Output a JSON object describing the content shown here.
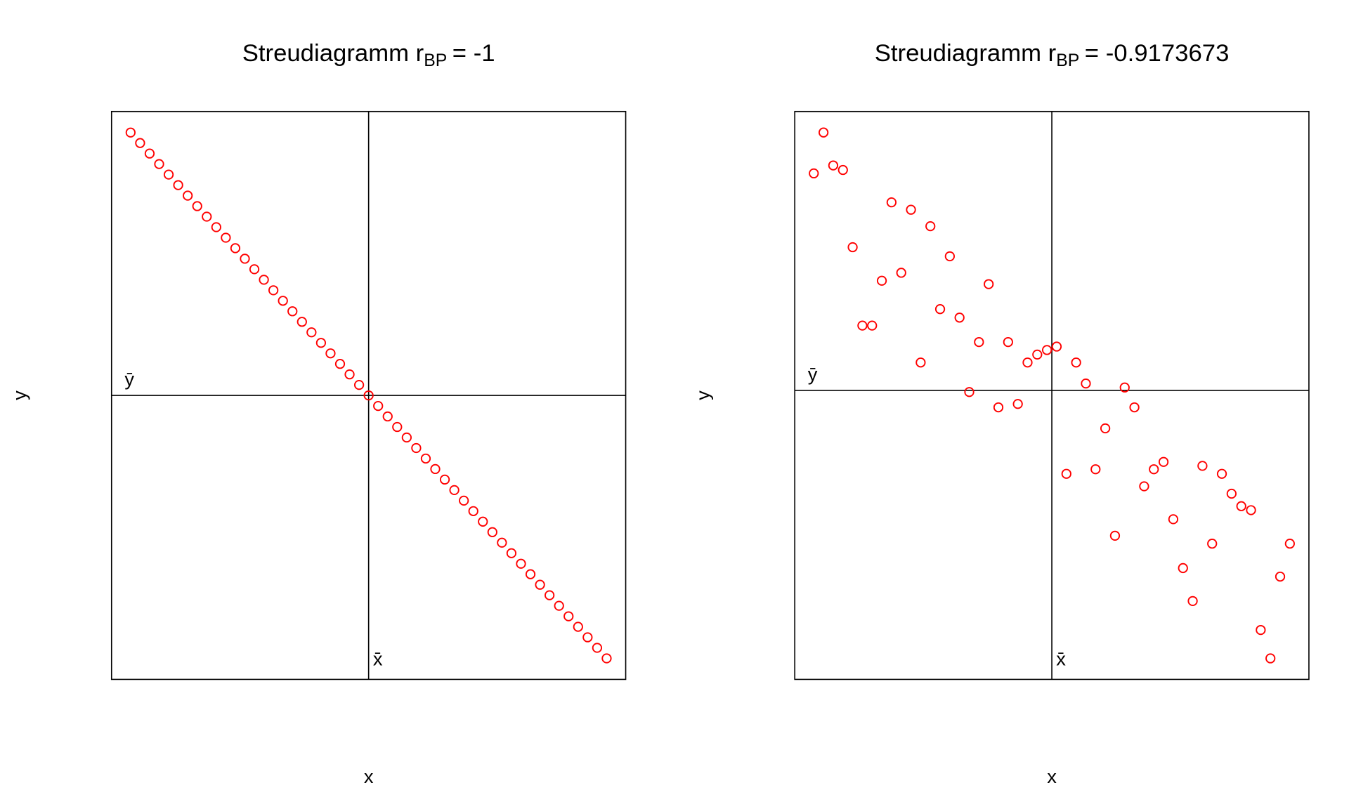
{
  "chart_data": [
    {
      "type": "scatter",
      "title": "Streudiagramm r",
      "title_subscript": "BP",
      "title_suffix": "= -1",
      "x_label": "x",
      "y_label": "y",
      "xbar_label": "x̄",
      "ybar_label": "ȳ",
      "xbar": 26,
      "ybar": 26,
      "color": "#ff0000",
      "xlim": [
        -1,
        53
      ],
      "ylim": [
        -1,
        53
      ],
      "x": [
        1,
        2,
        3,
        4,
        5,
        6,
        7,
        8,
        9,
        10,
        11,
        12,
        13,
        14,
        15,
        16,
        17,
        18,
        19,
        20,
        21,
        22,
        23,
        24,
        25,
        26,
        27,
        28,
        29,
        30,
        31,
        32,
        33,
        34,
        35,
        36,
        37,
        38,
        39,
        40,
        41,
        42,
        43,
        44,
        45,
        46,
        47,
        48,
        49,
        50,
        51
      ],
      "values": [
        51,
        50,
        49,
        48,
        47,
        46,
        45,
        44,
        43,
        42,
        41,
        40,
        39,
        38,
        37,
        36,
        35,
        34,
        33,
        32,
        31,
        30,
        29,
        28,
        27,
        26,
        25,
        24,
        23,
        22,
        21,
        20,
        19,
        18,
        17,
        16,
        15,
        14,
        13,
        12,
        11,
        10,
        9,
        8,
        7,
        6,
        5,
        4,
        3,
        2,
        1
      ]
    },
    {
      "type": "scatter",
      "title": "Streudiagramm r",
      "title_subscript": "BP",
      "title_suffix": "= -0.9173673",
      "x_label": "x",
      "y_label": "y",
      "xbar_label": "x̄",
      "ybar_label": "ȳ",
      "xbar": 25.5,
      "ybar": 50.9,
      "color": "#ff0000",
      "xlim": [
        -0.96,
        51.96
      ],
      "ylim": [
        0,
        100
      ],
      "x": [
        1,
        2,
        3,
        4,
        5,
        6,
        7,
        8,
        9,
        10,
        11,
        12,
        13,
        14,
        15,
        16,
        17,
        18,
        19,
        20,
        21,
        22,
        23,
        24,
        25,
        26,
        27,
        28,
        29,
        30,
        31,
        32,
        33,
        34,
        35,
        36,
        37,
        38,
        39,
        40,
        41,
        42,
        43,
        44,
        45,
        46,
        47,
        48,
        49,
        50
      ],
      "values": [
        89.1,
        96.3,
        90.5,
        89.7,
        76.1,
        62.3,
        62.3,
        70.2,
        84.0,
        71.6,
        82.7,
        55.8,
        79.8,
        65.2,
        74.5,
        63.7,
        50.6,
        59.4,
        69.6,
        47.9,
        59.4,
        48.5,
        55.8,
        57.2,
        58.0,
        58.6,
        36.2,
        55.8,
        52.1,
        37.0,
        44.2,
        25.3,
        51.4,
        47.9,
        34.0,
        37.0,
        38.3,
        28.2,
        19.6,
        13.8,
        37.6,
        23.9,
        36.2,
        32.7,
        30.5,
        29.8,
        8.7,
        3.7,
        18.1,
        23.9
      ]
    }
  ]
}
